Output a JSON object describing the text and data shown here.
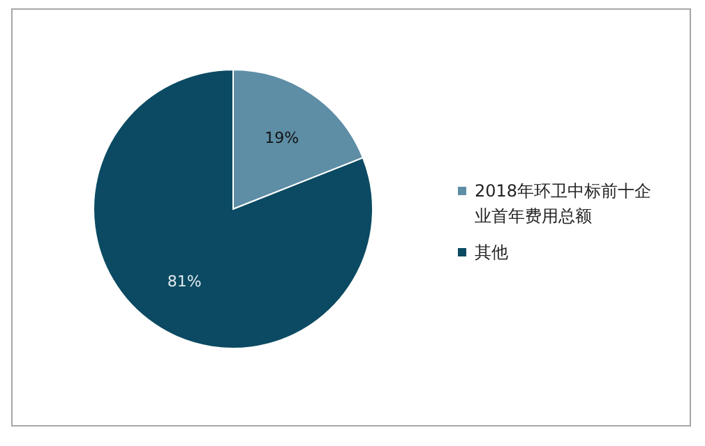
{
  "chart_data": {
    "type": "pie",
    "categories": [
      "2018年环卫中标前十企业首年费用总额",
      "其他"
    ],
    "values": [
      19,
      81
    ],
    "colors": [
      "#5e8ea6",
      "#0b4a62"
    ],
    "value_labels": [
      "19%",
      "81%"
    ],
    "legend": "right"
  }
}
